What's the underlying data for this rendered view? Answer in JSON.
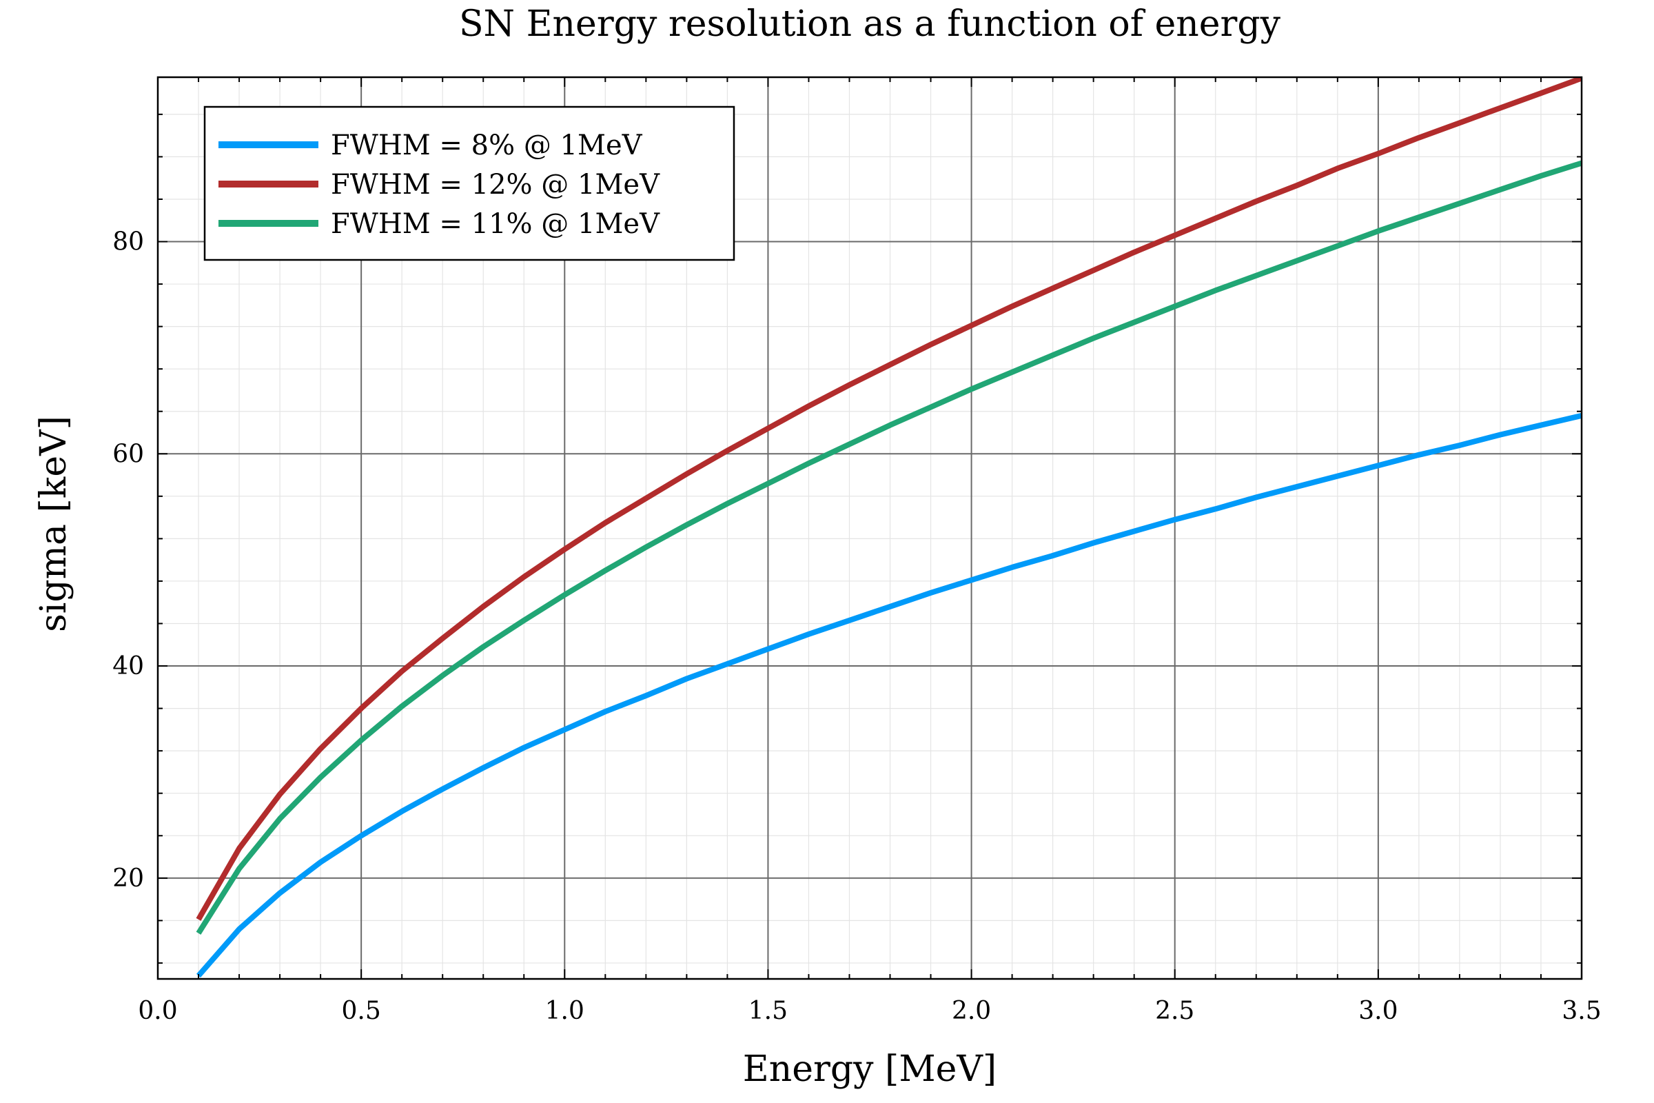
{
  "chart_data": {
    "type": "line",
    "title": "SN Energy resolution as a function of energy",
    "xlabel": "Energy [MeV]",
    "ylabel": "sigma [keV]",
    "xlim": [
      0.0,
      3.5
    ],
    "ylim": [
      10.5,
      95.5
    ],
    "x_ticks": [
      "0.0",
      "0.5",
      "1.0",
      "1.5",
      "2.0",
      "2.5",
      "3.0",
      "3.5"
    ],
    "y_ticks": [
      "20",
      "40",
      "60",
      "80"
    ],
    "grid": true,
    "minor_grid": true,
    "legend_position": "top-left",
    "x": [
      0.1,
      0.2,
      0.3,
      0.4,
      0.5,
      0.6,
      0.7,
      0.8,
      0.9,
      1.0,
      1.1,
      1.2,
      1.3,
      1.4,
      1.5,
      1.6,
      1.7,
      1.8,
      1.9,
      2.0,
      2.1,
      2.2,
      2.3,
      2.4,
      2.5,
      2.6,
      2.7,
      2.8,
      2.9,
      3.0,
      3.1,
      3.2,
      3.3,
      3.4,
      3.5
    ],
    "series": [
      {
        "name": "FWHM = 8% @ 1MeV",
        "color": "#009AF9",
        "values": [
          10.8,
          15.2,
          18.6,
          21.5,
          24.0,
          26.3,
          28.4,
          30.4,
          32.3,
          34.0,
          35.7,
          37.2,
          38.8,
          40.2,
          41.6,
          43.0,
          44.3,
          45.6,
          46.9,
          48.1,
          49.3,
          50.4,
          51.6,
          52.7,
          53.8,
          54.8,
          55.9,
          56.9,
          57.9,
          58.9,
          59.9,
          60.8,
          61.8,
          62.7,
          63.6
        ]
      },
      {
        "name": "FWHM = 12% @ 1MeV",
        "color": "#B22C2C",
        "values": [
          16.1,
          22.8,
          27.9,
          32.2,
          36.0,
          39.5,
          42.6,
          45.6,
          48.4,
          51.0,
          53.5,
          55.8,
          58.1,
          60.3,
          62.4,
          64.5,
          66.5,
          68.4,
          70.3,
          72.1,
          73.9,
          75.6,
          77.3,
          79.0,
          80.6,
          82.2,
          83.8,
          85.3,
          86.9,
          88.3,
          89.8,
          91.2,
          92.6,
          94.0,
          95.4
        ]
      },
      {
        "name": "FWHM = 11% @ 1MeV",
        "color": "#21A675",
        "values": [
          14.8,
          20.9,
          25.6,
          29.5,
          33.0,
          36.2,
          39.1,
          41.8,
          44.3,
          46.7,
          49.0,
          51.2,
          53.3,
          55.3,
          57.2,
          59.1,
          60.9,
          62.7,
          64.4,
          66.1,
          67.7,
          69.3,
          70.9,
          72.4,
          73.9,
          75.4,
          76.8,
          78.2,
          79.6,
          81.0,
          82.3,
          83.6,
          84.9,
          86.2,
          87.4
        ]
      }
    ]
  }
}
